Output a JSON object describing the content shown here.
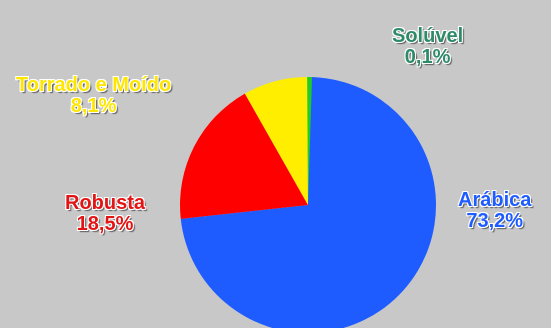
{
  "chart_data": {
    "type": "pie",
    "title": "",
    "slices": [
      {
        "label": "Arábica",
        "value": 73.2,
        "value_text": "73,2%",
        "color": "#1f5cff",
        "label_color": "#1f5cff"
      },
      {
        "label": "Robusta",
        "value": 18.5,
        "value_text": "18,5%",
        "color": "#ff0000",
        "label_color": "#e31414"
      },
      {
        "label": "Torrado e Moído",
        "value": 8.1,
        "value_text": "8,1%",
        "color": "#ffee00",
        "label_color": "#ffe600"
      },
      {
        "label": "Solúvel",
        "value": 0.1,
        "value_text": "0,1%",
        "color": "#22cc22",
        "label_color": "#2e8b6a"
      }
    ],
    "legend": "none",
    "background": "#c8c8c8"
  }
}
